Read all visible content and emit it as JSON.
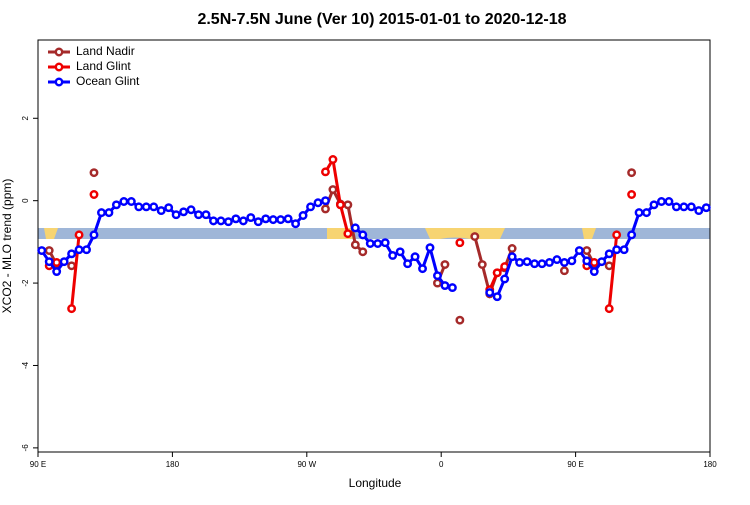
{
  "chart_data": {
    "type": "line",
    "title": "2.5N-7.5N June (Ver 10)   2015-01-01 to 2020-12-18",
    "x_label": "Longitude",
    "y_label": "XCO2 - MLO trend (ppm)",
    "xlim": [
      90,
      540
    ],
    "xticks": [
      {
        "value": 90,
        "label": "90 E"
      },
      180,
      {
        "value": 270,
        "label": "90 W"
      },
      {
        "value": 360,
        "label": "0"
      },
      {
        "value": 450,
        "label": "90 E"
      },
      {
        "value": 540,
        "label": "180"
      }
    ],
    "ylim": [
      -6.1,
      3.9
    ],
    "yticks": [
      -6,
      -4,
      -2,
      0,
      2
    ],
    "legend": "top-left",
    "x": [
      92.5,
      97.5,
      102.5,
      107.5,
      112.5,
      117.5,
      122.5,
      127.5,
      132.5,
      137.5,
      142.5,
      147.5,
      152.5,
      157.5,
      162.5,
      167.5,
      172.5,
      177.5,
      182.5,
      187.5,
      192.5,
      197.5,
      202.5,
      207.5,
      212.5,
      217.5,
      222.5,
      227.5,
      232.5,
      237.5,
      242.5,
      247.5,
      252.5,
      257.5,
      262.5,
      267.5,
      272.5,
      277.5,
      282.5,
      287.5,
      292.5,
      297.5,
      302.5,
      307.5,
      312.5,
      317.5,
      322.5,
      327.5,
      332.5,
      337.5,
      342.5,
      347.5,
      352.5,
      357.5,
      362.5,
      367.5,
      372.5,
      377.5,
      382.5,
      387.5,
      392.5,
      397.5,
      402.5,
      407.5,
      412.5,
      417.5,
      422.5,
      427.5,
      432.5,
      437.5,
      442.5,
      447.5,
      452.5,
      457.5,
      462.5,
      467.5,
      472.5,
      477.5,
      482.5,
      487.5,
      492.5,
      497.5,
      502.5,
      507.5,
      512.5,
      517.5,
      522.5,
      527.5,
      532.5,
      537.5
    ],
    "series": [
      {
        "name": "Land Nadir",
        "color": "#a52a2a",
        "values": [
          null,
          -1.21,
          -1.55,
          null,
          -1.58,
          null,
          null,
          0.68,
          null,
          null,
          null,
          null,
          null,
          null,
          null,
          null,
          null,
          null,
          null,
          null,
          null,
          null,
          null,
          null,
          null,
          null,
          null,
          null,
          null,
          null,
          null,
          null,
          null,
          null,
          null,
          null,
          null,
          null,
          -0.2,
          0.27,
          -0.08,
          -0.1,
          -1.07,
          -1.24,
          null,
          null,
          null,
          null,
          null,
          null,
          null,
          null,
          null,
          -2.0,
          -1.55,
          null,
          -2.9,
          null,
          -0.87,
          -1.55,
          -2.26,
          -1.75,
          -1.63,
          -1.16,
          null,
          null,
          null,
          null,
          null,
          null,
          -1.7,
          null,
          null,
          -1.21,
          -1.55,
          null,
          -1.58,
          null,
          null,
          0.68,
          null,
          null,
          null,
          null,
          null,
          null,
          null,
          null,
          null,
          null
        ]
      },
      {
        "name": "Land Glint",
        "color": "#ee0000",
        "values": [
          null,
          -1.58,
          -1.5,
          null,
          -2.62,
          -0.83,
          null,
          0.15,
          null,
          null,
          null,
          null,
          null,
          null,
          null,
          null,
          null,
          null,
          null,
          null,
          null,
          null,
          null,
          null,
          null,
          null,
          null,
          null,
          null,
          null,
          null,
          null,
          null,
          null,
          null,
          null,
          null,
          null,
          0.7,
          1.0,
          -0.1,
          -0.8,
          null,
          null,
          null,
          null,
          null,
          null,
          null,
          null,
          null,
          null,
          null,
          null,
          null,
          null,
          -1.02,
          null,
          null,
          null,
          -2.16,
          -1.75,
          -1.6,
          null,
          null,
          null,
          null,
          null,
          null,
          null,
          null,
          null,
          null,
          -1.58,
          -1.5,
          null,
          -2.62,
          -0.83,
          null,
          0.15,
          null,
          null,
          null,
          null,
          null,
          null,
          null,
          null,
          null,
          null
        ]
      },
      {
        "name": "Ocean Glint",
        "color": "#0000ff",
        "values": [
          -1.21,
          -1.48,
          -1.72,
          -1.48,
          -1.29,
          -1.19,
          -1.19,
          -0.83,
          -0.29,
          -0.29,
          -0.1,
          -0.02,
          -0.02,
          -0.15,
          -0.15,
          -0.15,
          -0.24,
          -0.17,
          -0.34,
          -0.27,
          -0.22,
          -0.34,
          -0.34,
          -0.49,
          -0.49,
          -0.51,
          -0.44,
          -0.49,
          -0.41,
          -0.51,
          -0.44,
          -0.46,
          -0.46,
          -0.44,
          -0.56,
          -0.36,
          -0.15,
          -0.05,
          0.0,
          null,
          null,
          null,
          -0.66,
          -0.83,
          -1.04,
          -1.04,
          -1.02,
          -1.33,
          -1.24,
          -1.53,
          -1.36,
          -1.65,
          -1.14,
          -1.82,
          -2.06,
          -2.11,
          null,
          null,
          null,
          null,
          -2.23,
          -2.33,
          -1.9,
          -1.36,
          -1.5,
          -1.48,
          -1.53,
          -1.53,
          -1.5,
          -1.43,
          -1.5,
          -1.46,
          -1.21,
          -1.46,
          -1.72,
          -1.48,
          -1.29,
          -1.19,
          -1.19,
          -0.83,
          -0.29,
          -0.29,
          -0.1,
          -0.02,
          -0.02,
          -0.15,
          -0.15,
          -0.15,
          -0.24,
          -0.17
        ]
      }
    ]
  }
}
